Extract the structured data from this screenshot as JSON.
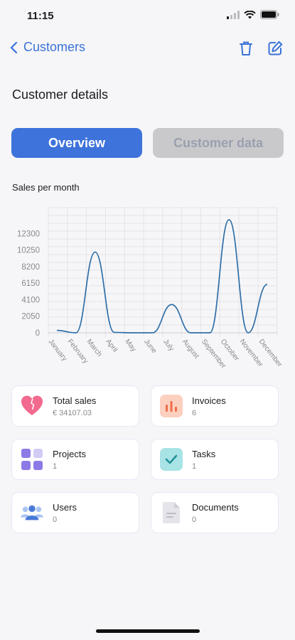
{
  "status": {
    "time": "11:15"
  },
  "nav": {
    "back_label": "Customers"
  },
  "page": {
    "title": "Customer details"
  },
  "tabs": [
    {
      "label": "Overview",
      "active": true
    },
    {
      "label": "Customer data",
      "active": false
    }
  ],
  "chart_title": "Sales per month",
  "chart_data": {
    "type": "line",
    "categories": [
      "January",
      "February",
      "March",
      "April",
      "May",
      "June",
      "July",
      "August",
      "September",
      "October",
      "November",
      "December"
    ],
    "series": [
      {
        "values": [
          300,
          0,
          10000,
          50,
          0,
          0,
          3500,
          0,
          0,
          14000,
          0,
          6000
        ]
      }
    ],
    "yticks": [
      "12300",
      "10250",
      "8200",
      "6150",
      "4100",
      "2050",
      "0"
    ],
    "ylim": [
      0,
      15500
    ],
    "grid": true,
    "color": "#2f6fa8"
  },
  "cards": [
    {
      "label": "Total sales",
      "value": "€ 34107.03",
      "icon": "heart-icon",
      "icon_bg": "#fff"
    },
    {
      "label": "Invoices",
      "value": "6",
      "icon": "bar-chart-icon",
      "icon_bg": "#fbd0bf"
    },
    {
      "label": "Projects",
      "value": "1",
      "icon": "grid-icon",
      "icon_bg": "#fff"
    },
    {
      "label": "Tasks",
      "value": "1",
      "icon": "checkmark-icon",
      "icon_bg": "#a8e3e6"
    },
    {
      "label": "Users",
      "value": "0",
      "icon": "users-icon",
      "icon_bg": "#fff"
    },
    {
      "label": "Documents",
      "value": "0",
      "icon": "document-icon",
      "icon_bg": "#fff"
    }
  ]
}
